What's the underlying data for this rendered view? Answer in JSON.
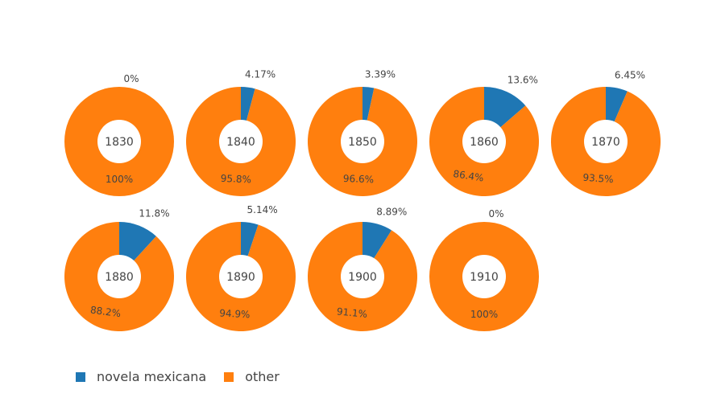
{
  "chart_data": {
    "type": "pie",
    "hole": true,
    "series_names": [
      "novela mexicana",
      "other"
    ],
    "colors": {
      "novela mexicana": "#1f77b4",
      "other": "#ff7f0e"
    },
    "legend_placement": "bottom-left",
    "panels": [
      {
        "label": "1830",
        "values": [
          0,
          100
        ],
        "text": [
          "0%",
          "100%"
        ]
      },
      {
        "label": "1840",
        "values": [
          4.17,
          95.8
        ],
        "text": [
          "4.17%",
          "95.8%"
        ]
      },
      {
        "label": "1850",
        "values": [
          3.39,
          96.6
        ],
        "text": [
          "3.39%",
          "96.6%"
        ]
      },
      {
        "label": "1860",
        "values": [
          13.6,
          86.4
        ],
        "text": [
          "13.6%",
          "86.4%"
        ]
      },
      {
        "label": "1870",
        "values": [
          6.45,
          93.5
        ],
        "text": [
          "6.45%",
          "93.5%"
        ]
      },
      {
        "label": "1880",
        "values": [
          11.8,
          88.2
        ],
        "text": [
          "11.8%",
          "88.2%"
        ]
      },
      {
        "label": "1890",
        "values": [
          5.14,
          94.9
        ],
        "text": [
          "5.14%",
          "94.9%"
        ]
      },
      {
        "label": "1900",
        "values": [
          8.89,
          91.1
        ],
        "text": [
          "8.89%",
          "91.1%"
        ]
      },
      {
        "label": "1910",
        "values": [
          0,
          100
        ],
        "text": [
          "0%",
          "100%"
        ]
      }
    ]
  },
  "legend": {
    "items": [
      {
        "label": "novela mexicana",
        "color": "#1f77b4"
      },
      {
        "label": "other",
        "color": "#ff7f0e"
      }
    ]
  }
}
